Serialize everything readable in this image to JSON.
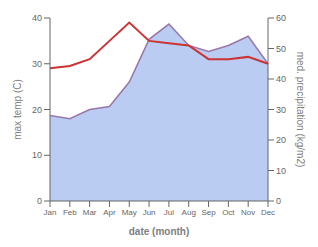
{
  "chart_data": {
    "type": "line",
    "categories": [
      "Jan",
      "Feb",
      "Mar",
      "Apr",
      "May",
      "Jun",
      "Jul",
      "Aug",
      "Sep",
      "Oct",
      "Nov",
      "Dec"
    ],
    "series": [
      {
        "type": "area",
        "color": "#b3c6f0",
        "axis": "y2",
        "values": [
          28,
          27,
          30,
          31,
          39,
          53,
          58,
          51,
          49,
          51,
          54,
          45
        ]
      },
      {
        "type": "line",
        "color": "#9977aa",
        "axis": "y2",
        "values": [
          28,
          27,
          30,
          31,
          39,
          53,
          58,
          51,
          49,
          51,
          54,
          45
        ]
      },
      {
        "type": "line",
        "color": "#cc3333",
        "values": [
          29,
          29.5,
          31,
          35,
          39,
          35,
          34.5,
          34,
          31,
          31,
          31.5,
          30
        ]
      }
    ],
    "xlabel": "date (month)",
    "ylabel": "max temp (C)",
    "y2label": "med. precipitation (kg/m2)",
    "ylim": [
      0,
      40
    ],
    "yticks": [
      0,
      10,
      20,
      30,
      40
    ],
    "y2lim": [
      0,
      60
    ],
    "y2ticks": [
      0,
      10,
      20,
      30,
      40,
      50,
      60
    ],
    "grid": false
  }
}
